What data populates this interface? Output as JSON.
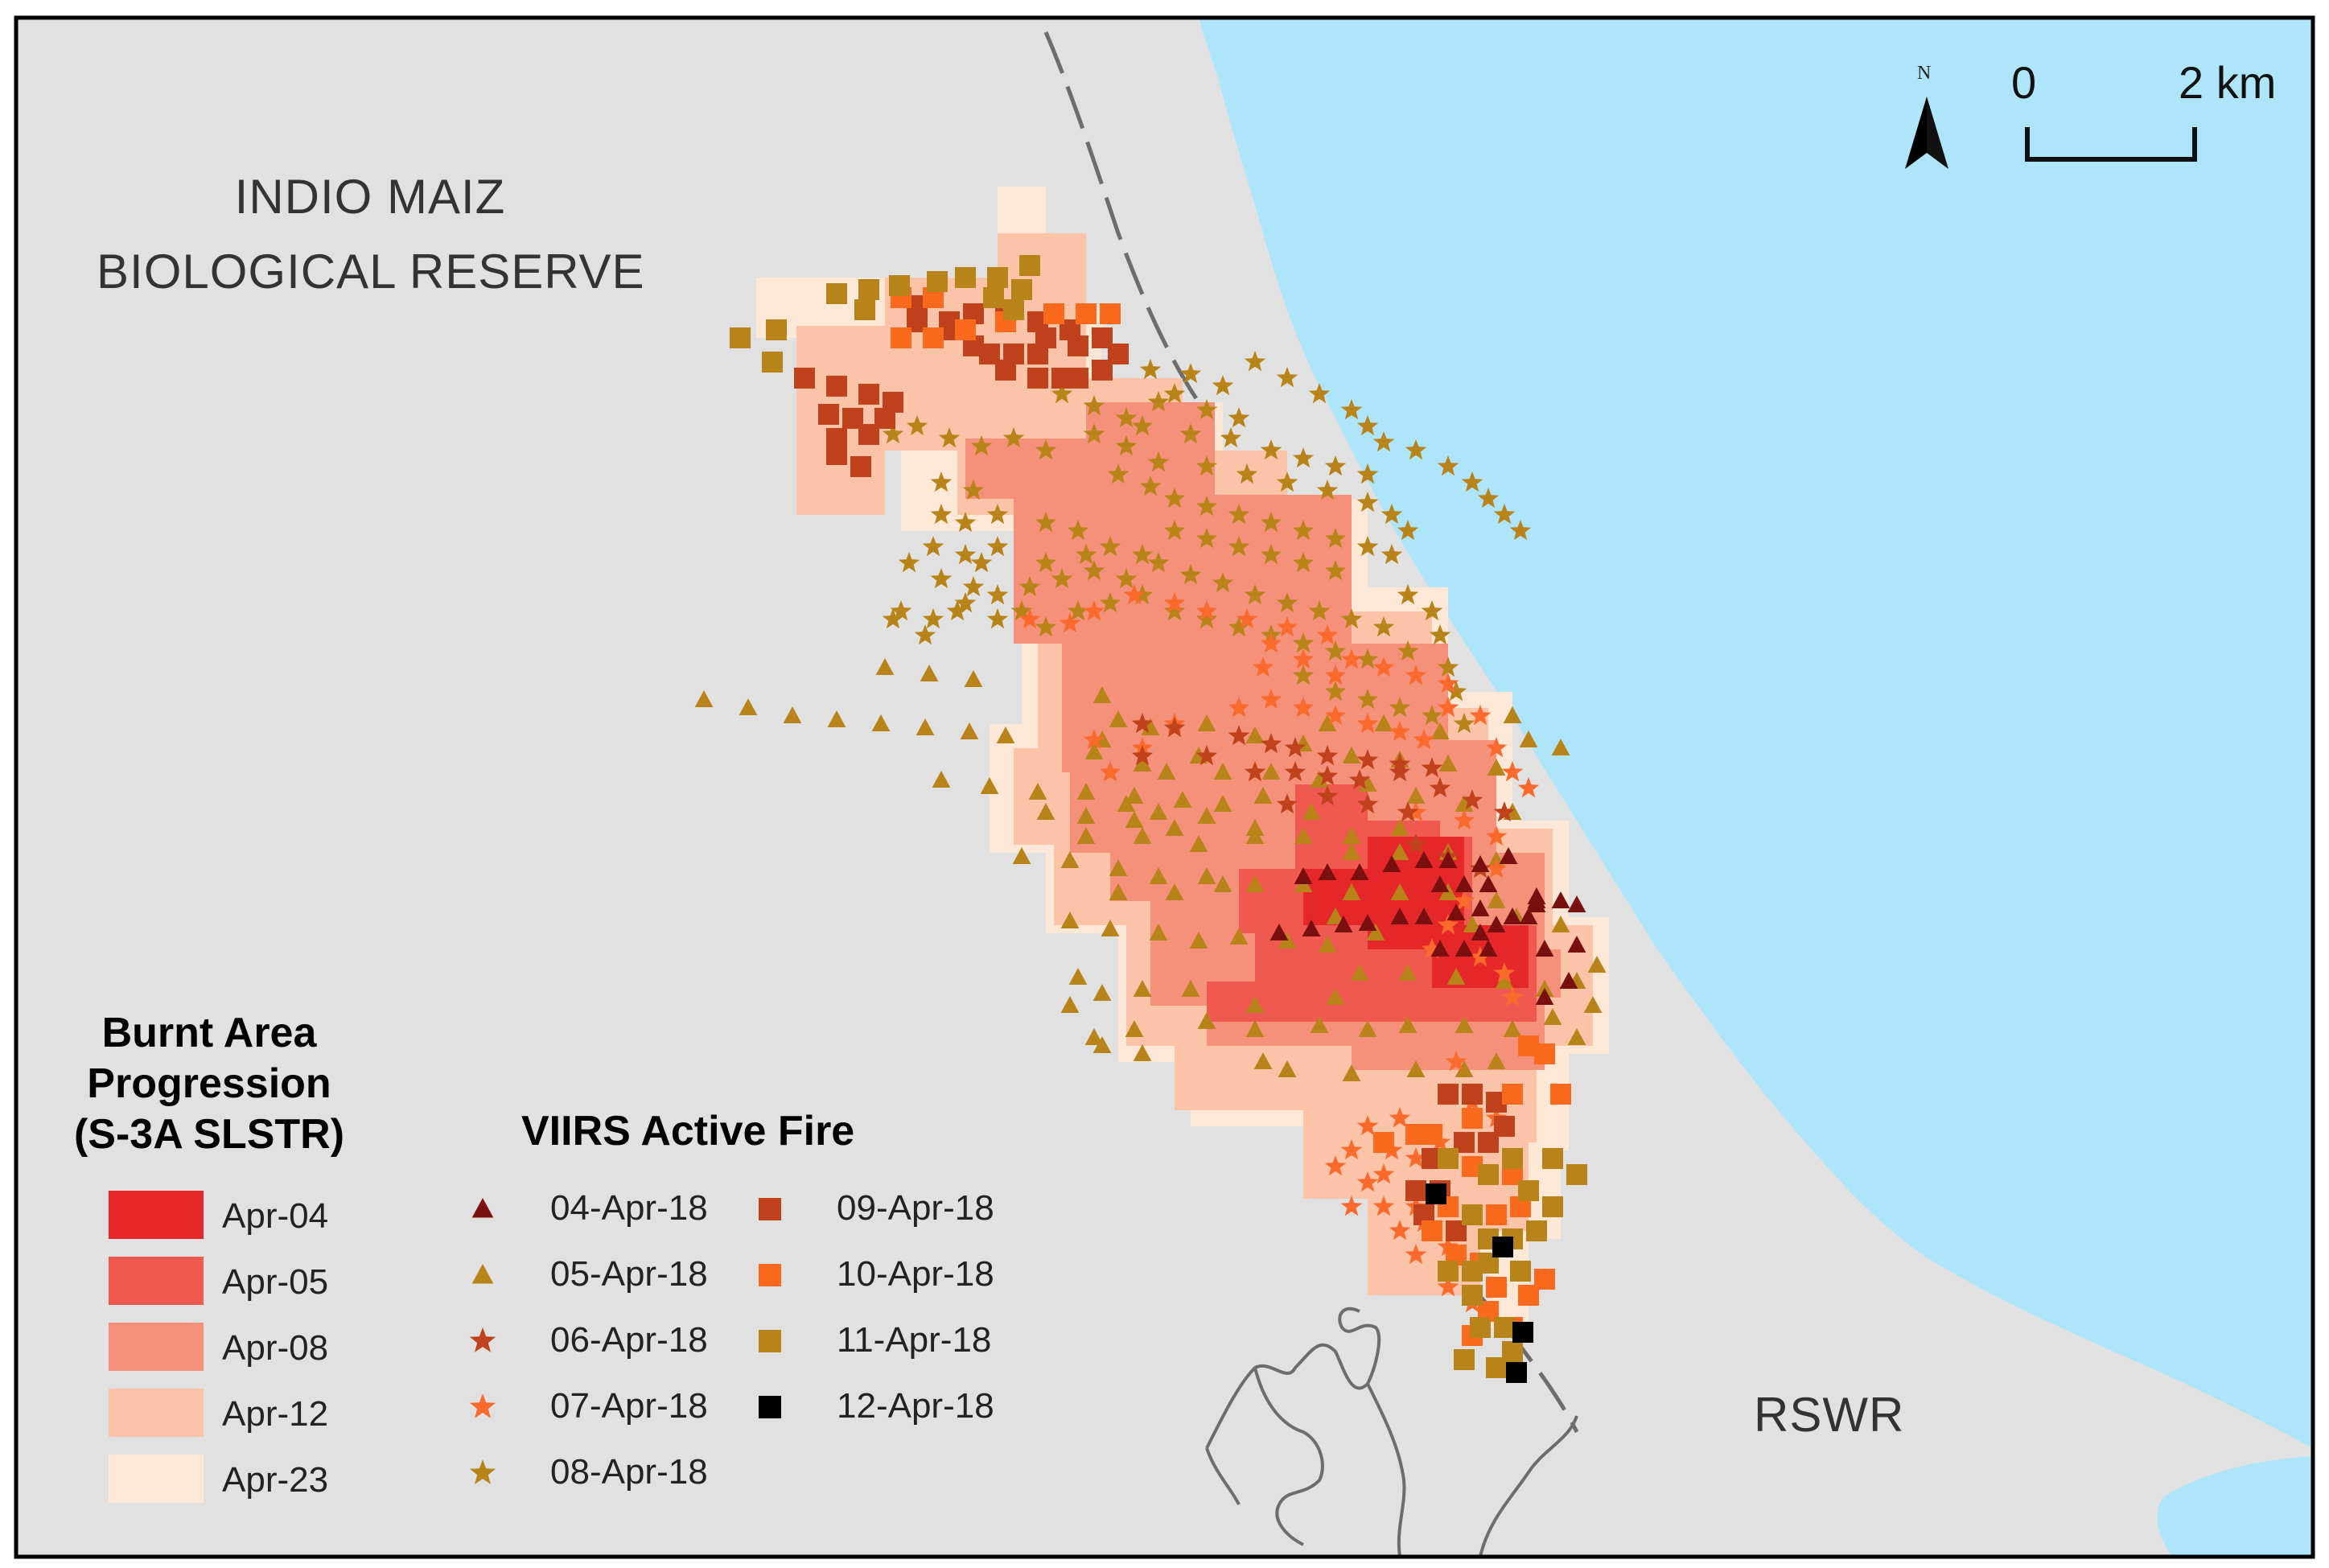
{
  "colors": {
    "land": "#e1e1e1",
    "sea": "#aee5fb",
    "border_line": "#6d6d6d",
    "frame": "#000000",
    "burnt": {
      "Apr-04": "#e6272a",
      "Apr-05": "#f0594f",
      "Apr-08": "#f5917a",
      "Apr-12": "#fbc4a8",
      "Apr-23": "#fde8d8"
    },
    "fire": {
      "04-Apr-18": "#7a0f0f",
      "05-Apr-18": "#b8841a",
      "06-Apr-18": "#c0421c",
      "07-Apr-18": "#fb6a2c",
      "08-Apr-18": "#b8841a",
      "09-Apr-18": "#c0421c",
      "10-Apr-18": "#fb6a1c",
      "11-Apr-18": "#b8841a",
      "12-Apr-18": "#000000"
    }
  },
  "labels": {
    "reserve_line1": "INDIO MAIZ",
    "reserve_line2": "BIOLOGICAL RESERVE",
    "rswr": "RSWR",
    "north": "N"
  },
  "scale_bar": {
    "start": "0",
    "end": "2 km"
  },
  "legend_burnt": {
    "title_line1": "Burnt Area",
    "title_line2": "Progression",
    "title_line3": "(S-3A SLSTR)",
    "items": [
      {
        "label": "Apr-04",
        "color_key": "Apr-04"
      },
      {
        "label": "Apr-05",
        "color_key": "Apr-05"
      },
      {
        "label": "Apr-08",
        "color_key": "Apr-08"
      },
      {
        "label": "Apr-12",
        "color_key": "Apr-12"
      },
      {
        "label": "Apr-23",
        "color_key": "Apr-23"
      }
    ]
  },
  "legend_fire": {
    "title": "VIIRS Active Fire",
    "items": [
      {
        "label": "04-Apr-18",
        "symbol": "triangle"
      },
      {
        "label": "05-Apr-18",
        "symbol": "triangle"
      },
      {
        "label": "06-Apr-18",
        "symbol": "star"
      },
      {
        "label": "07-Apr-18",
        "symbol": "star"
      },
      {
        "label": "08-Apr-18",
        "symbol": "star"
      },
      {
        "label": "09-Apr-18",
        "symbol": "square"
      },
      {
        "label": "10-Apr-18",
        "symbol": "square"
      },
      {
        "label": "11-Apr-18",
        "symbol": "square"
      },
      {
        "label": "12-Apr-18",
        "symbol": "square"
      }
    ]
  }
}
